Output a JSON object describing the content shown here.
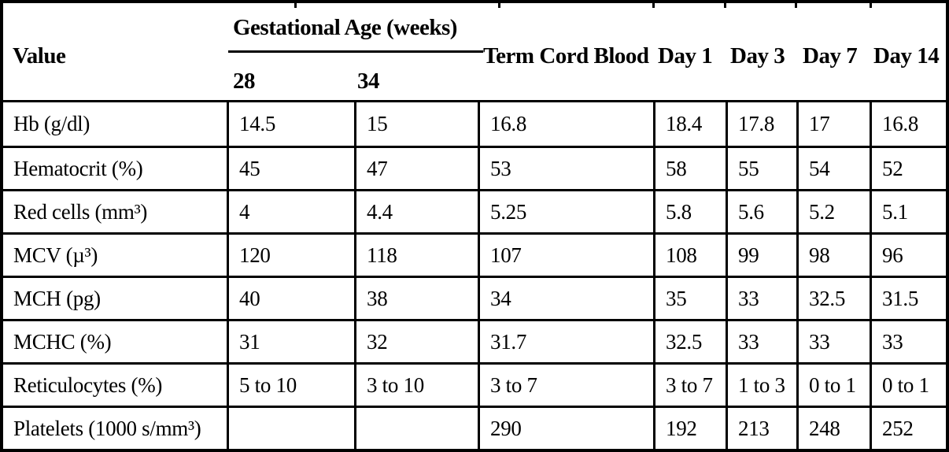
{
  "header": {
    "value_label": "Value",
    "gestational_group_label": "Gestational Age (weeks)",
    "gestational_subcolumns": [
      "28",
      "34"
    ],
    "data_columns": [
      "Term Cord Blood",
      "Day 1",
      "Day 3",
      "Day 7",
      "Day 14"
    ]
  },
  "rows": [
    {
      "label": "Hb (g/dl)",
      "values": [
        "14.5",
        "15",
        "16.8",
        "18.4",
        "17.8",
        "17",
        "16.8"
      ]
    },
    {
      "label": "Hematocrit (%)",
      "values": [
        "45",
        "47",
        "53",
        "58",
        "55",
        "54",
        "52"
      ]
    },
    {
      "label": "Red cells (mm³)",
      "values": [
        "4",
        "4.4",
        "5.25",
        "5.8",
        "5.6",
        "5.2",
        "5.1"
      ]
    },
    {
      "label": "MCV (µ³)",
      "values": [
        "120",
        "118",
        "107",
        "108",
        "99",
        "98",
        "96"
      ]
    },
    {
      "label": "MCH (pg)",
      "values": [
        "40",
        "38",
        "34",
        "35",
        "33",
        "32.5",
        "31.5"
      ]
    },
    {
      "label": "MCHC (%)",
      "values": [
        "31",
        "32",
        "31.7",
        "32.5",
        "33",
        "33",
        "33"
      ]
    },
    {
      "label": "Reticulocytes (%)",
      "values": [
        "5 to 10",
        "3 to 10",
        "3 to 7",
        "3 to 7",
        "1 to 3",
        "0 to 1",
        "0 to 1"
      ]
    },
    {
      "label": "Platelets (1000 s/mm³)",
      "values": [
        "",
        "",
        "290",
        "192",
        "213",
        "248",
        "252"
      ]
    }
  ],
  "colors": {
    "border": "#000000",
    "background": "#ffffff",
    "text": "#000000"
  }
}
